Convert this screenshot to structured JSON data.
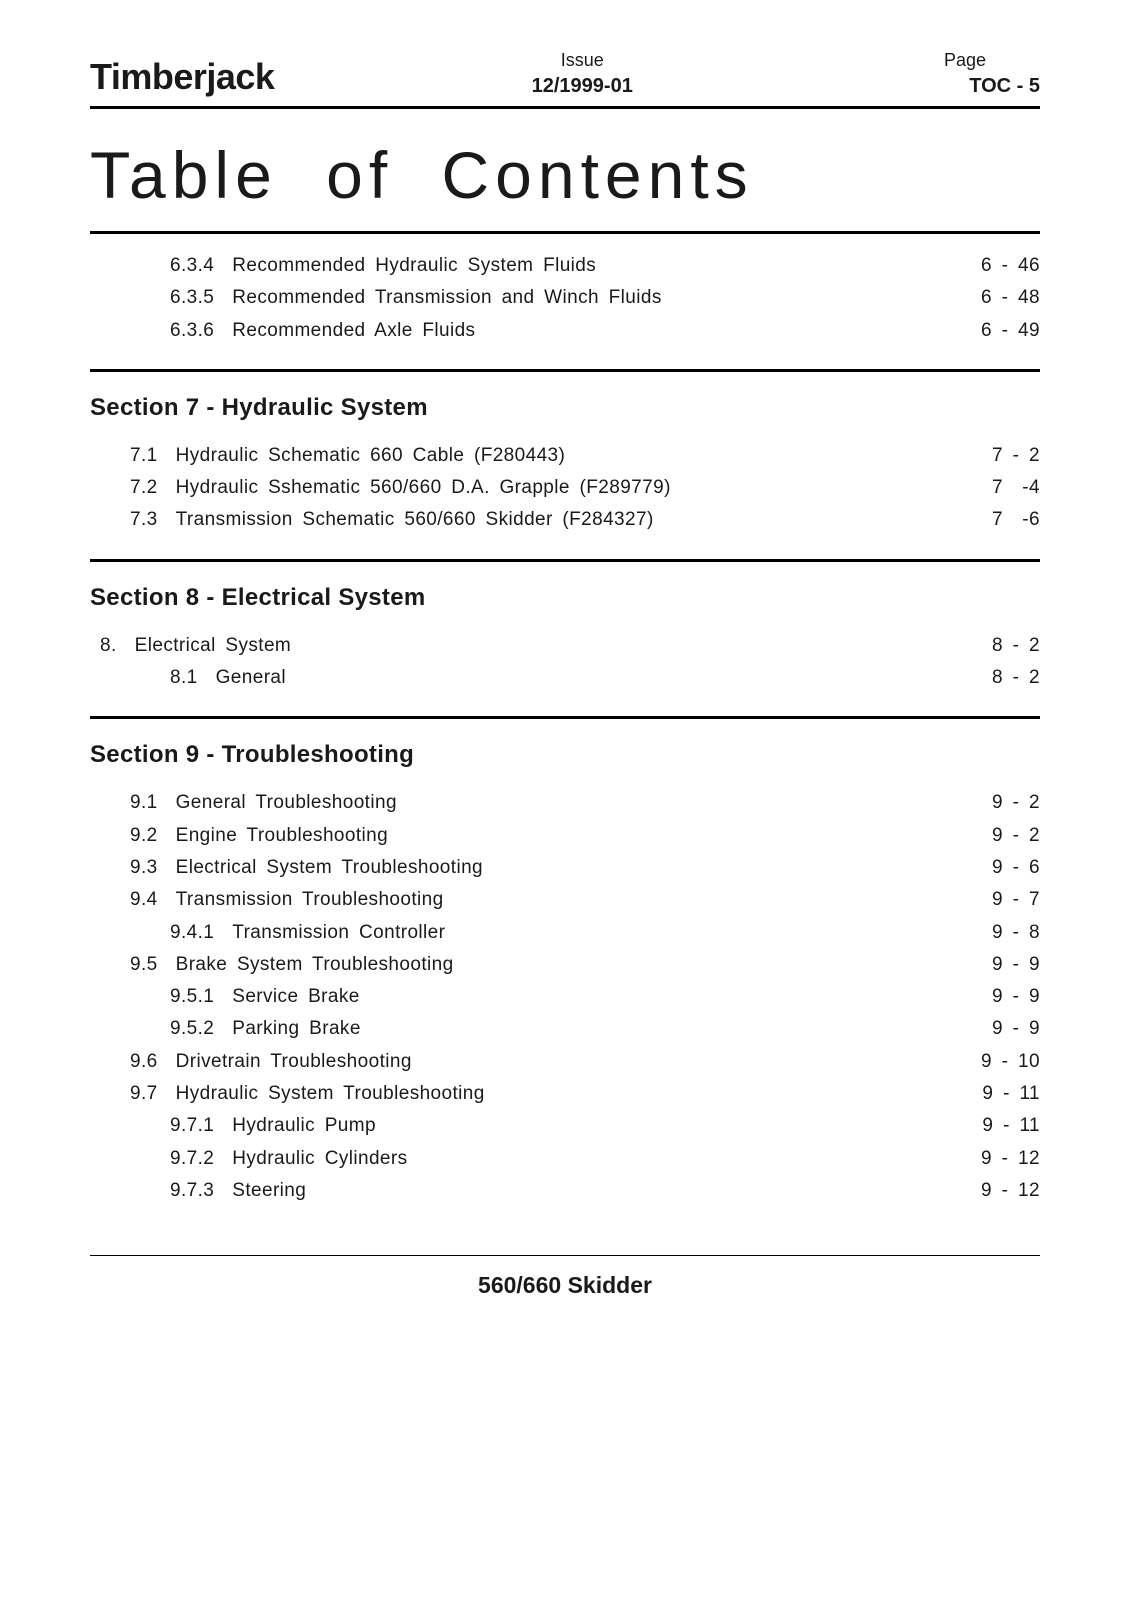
{
  "header": {
    "brand": "Timberjack",
    "issue_label": "Issue",
    "issue_value": "12/1999-01",
    "page_label": "Page",
    "page_value": "TOC - 5"
  },
  "title": "Table  of  Contents",
  "group_pre": {
    "entries": [
      {
        "num": "6.3.4",
        "txt": "Recommended  Hydraulic  System  Fluids",
        "pg": "6 - 46",
        "indent": 1
      },
      {
        "num": "6.3.5",
        "txt": "Recommended  Transmission   and  Winch  Fluids",
        "pg": "6 - 48",
        "indent": 1
      },
      {
        "num": "6.3.6",
        "txt": "Recommended  Axle  Fluids",
        "pg": "6 - 49",
        "indent": 1
      }
    ]
  },
  "section7": {
    "heading": "Section 7 - Hydraulic System",
    "entries": [
      {
        "num": "7.1",
        "txt": "Hydraulic  Schematic  660  Cable  (F280443)",
        "pg": "7 - 2",
        "indent": 0
      },
      {
        "num": "7.2",
        "txt": "Hydraulic  Sshematic  560/660  D.A.  Grapple  (F289779)",
        "pg": "7  -4",
        "indent": 0
      },
      {
        "num": "7.3",
        "txt": "Transmission  Schematic  560/660  Skidder  (F284327)",
        "pg": "7  -6",
        "indent": 0
      }
    ]
  },
  "section8": {
    "heading": "Section 8 - Electrical System",
    "entries": [
      {
        "num": "8.",
        "txt": "Electrical  System",
        "pg": "8 - 2",
        "indent": 0,
        "tight": true
      },
      {
        "num": "8.1",
        "txt": "General",
        "pg": "8 - 2",
        "indent": 1
      }
    ]
  },
  "section9": {
    "heading": "Section 9 - Troubleshooting",
    "entries": [
      {
        "num": "9.1",
        "txt": "General  Troubleshooting",
        "pg": "9 - 2",
        "indent": 0
      },
      {
        "num": "9.2",
        "txt": "Engine  Troubleshooting",
        "pg": "9 - 2",
        "indent": 0
      },
      {
        "num": "9.3",
        "txt": "Electrical  System  Troubleshooting",
        "pg": "9 - 6",
        "indent": 0
      },
      {
        "num": "9.4",
        "txt": "Transmission  Troubleshooting",
        "pg": "9 - 7",
        "indent": 0
      },
      {
        "num": "9.4.1",
        "txt": "Transmission  Controller",
        "pg": "9 - 8",
        "indent": 1
      },
      {
        "num": "9.5",
        "txt": "Brake  System  Troubleshooting",
        "pg": "9 - 9",
        "indent": 0
      },
      {
        "num": "9.5.1",
        "txt": "Service  Brake",
        "pg": "9 - 9",
        "indent": 1
      },
      {
        "num": "9.5.2",
        "txt": "Parking  Brake",
        "pg": "9 - 9",
        "indent": 1
      },
      {
        "num": "9.6",
        "txt": "Drivetrain  Troubleshooting",
        "pg": "9 - 10",
        "indent": 0
      },
      {
        "num": "9.7",
        "txt": "Hydraulic  System  Troubleshooting",
        "pg": "9 - 11",
        "indent": 0
      },
      {
        "num": "9.7.1",
        "txt": "Hydraulic  Pump",
        "pg": "9 - 11",
        "indent": 1
      },
      {
        "num": "9.7.2",
        "txt": "Hydraulic  Cylinders",
        "pg": "9 - 12",
        "indent": 1
      },
      {
        "num": "9.7.3",
        "txt": "Steering",
        "pg": "9 - 12",
        "indent": 1
      }
    ]
  },
  "footer": "560/660 Skidder"
}
